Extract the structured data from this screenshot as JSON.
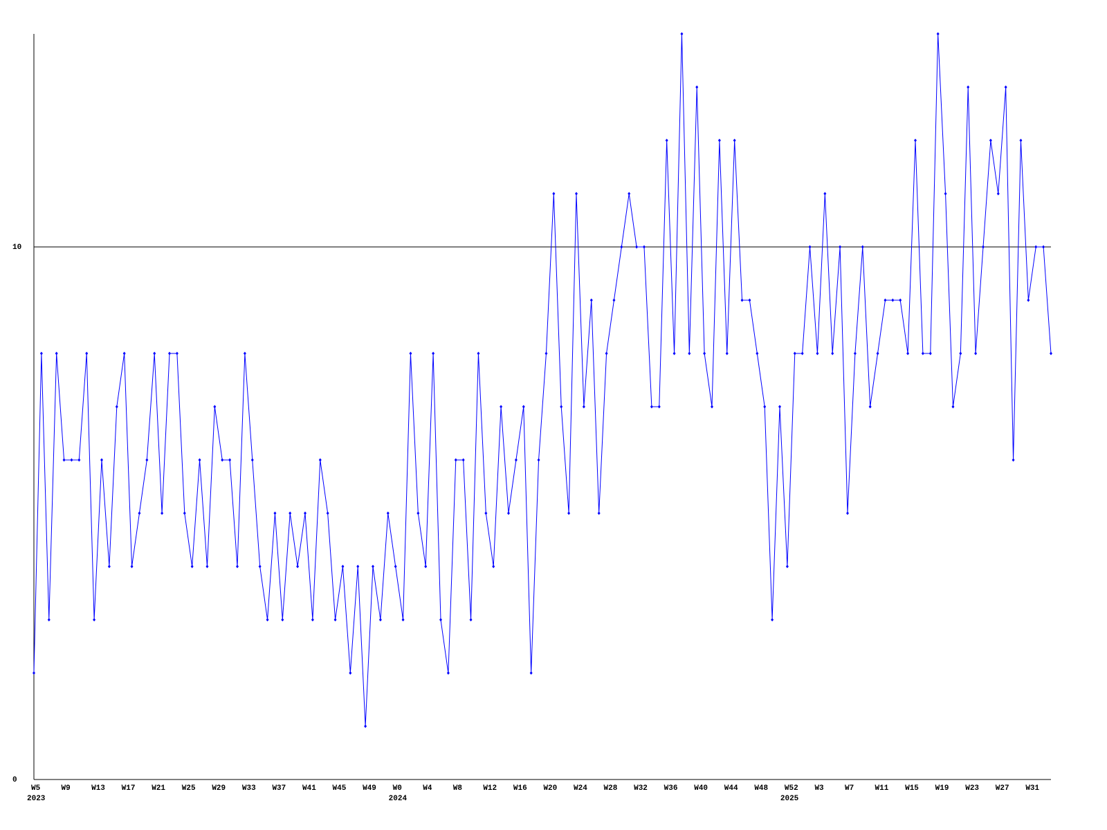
{
  "chart_data": {
    "type": "line",
    "categories": [
      "W5",
      null,
      null,
      null,
      "W9",
      null,
      null,
      null,
      "W13",
      null,
      null,
      null,
      "W17",
      null,
      null,
      null,
      "W21",
      null,
      null,
      null,
      "W25",
      null,
      null,
      null,
      "W29",
      null,
      null,
      null,
      "W33",
      null,
      null,
      null,
      "W37",
      null,
      null,
      null,
      "W41",
      null,
      null,
      null,
      "W45",
      null,
      null,
      null,
      "W49",
      null,
      null,
      null,
      "W0",
      null,
      null,
      null,
      "W4",
      null,
      null,
      null,
      "W8",
      null,
      null,
      null,
      "W12",
      null,
      null,
      null,
      "W16",
      null,
      null,
      null,
      "W20",
      null,
      null,
      null,
      "W24",
      null,
      null,
      null,
      "W28",
      null,
      null,
      null,
      "W32",
      null,
      null,
      null,
      "W36",
      null,
      null,
      null,
      "W40",
      null,
      null,
      null,
      "W44",
      null,
      null,
      null,
      "W48",
      null,
      null,
      null,
      "W52",
      null,
      null,
      null,
      "W3",
      null,
      null,
      null,
      "W7",
      null,
      null,
      null,
      "W11",
      null,
      null,
      null,
      "W15",
      null,
      null,
      null,
      "W19",
      null,
      null,
      null,
      "W23",
      null,
      null,
      null,
      "W27",
      null,
      null,
      null,
      "W31",
      null,
      null,
      null
    ],
    "year_labels": [
      "2023",
      null,
      null,
      null,
      null,
      null,
      null,
      null,
      null,
      null,
      null,
      null,
      null,
      null,
      null,
      null,
      null,
      null,
      null,
      null,
      null,
      null,
      null,
      null,
      null,
      null,
      null,
      null,
      null,
      null,
      null,
      null,
      null,
      null,
      null,
      null,
      null,
      null,
      null,
      null,
      null,
      null,
      null,
      null,
      null,
      null,
      null,
      null,
      "2024",
      null,
      null,
      null,
      null,
      null,
      null,
      null,
      null,
      null,
      null,
      null,
      null,
      null,
      null,
      null,
      null,
      null,
      null,
      null,
      null,
      null,
      null,
      null,
      null,
      null,
      null,
      null,
      null,
      null,
      null,
      null,
      null,
      null,
      null,
      null,
      null,
      null,
      null,
      null,
      null,
      null,
      null,
      null,
      null,
      null,
      null,
      null,
      null,
      null,
      null,
      null,
      "2025",
      null,
      null,
      null,
      null,
      null,
      null,
      null,
      null,
      null,
      null,
      null,
      null,
      null,
      null,
      null,
      null,
      null,
      null,
      null,
      null,
      null,
      null,
      null,
      null,
      null,
      null,
      null,
      null,
      null,
      null,
      null,
      null,
      null,
      null,
      null
    ],
    "series": [
      {
        "color": "#0000ff",
        "values": [
          2,
          8,
          3,
          8,
          6,
          6,
          6,
          8,
          3,
          6,
          4,
          7,
          8,
          4,
          5,
          6,
          8,
          5,
          8,
          8,
          5,
          4,
          6,
          4,
          7,
          6,
          6,
          4,
          8,
          6,
          4,
          3,
          5,
          3,
          5,
          4,
          5,
          3,
          6,
          5,
          3,
          4,
          2,
          4,
          1,
          4,
          3,
          5,
          4,
          3,
          8,
          5,
          4,
          8,
          3,
          2,
          6,
          6,
          3,
          8,
          5,
          4,
          7,
          5,
          6,
          7,
          2,
          6,
          8,
          11,
          7,
          5,
          11,
          7,
          9,
          5,
          8,
          9,
          10,
          11,
          10,
          10,
          7,
          7,
          12,
          8,
          14,
          8,
          13,
          8,
          7,
          12,
          8,
          12,
          9,
          9,
          8,
          7,
          3,
          7,
          4,
          8,
          8,
          10,
          8,
          11,
          8,
          10,
          5,
          8,
          10,
          7,
          8,
          9,
          9,
          9,
          8,
          12,
          8,
          8,
          14,
          11,
          7,
          8,
          13,
          8,
          10,
          12,
          11,
          13,
          6,
          12,
          9,
          10,
          10,
          8
        ]
      }
    ],
    "ylim": [
      0,
      14
    ],
    "yticks": [
      0,
      10
    ],
    "grid": true
  }
}
